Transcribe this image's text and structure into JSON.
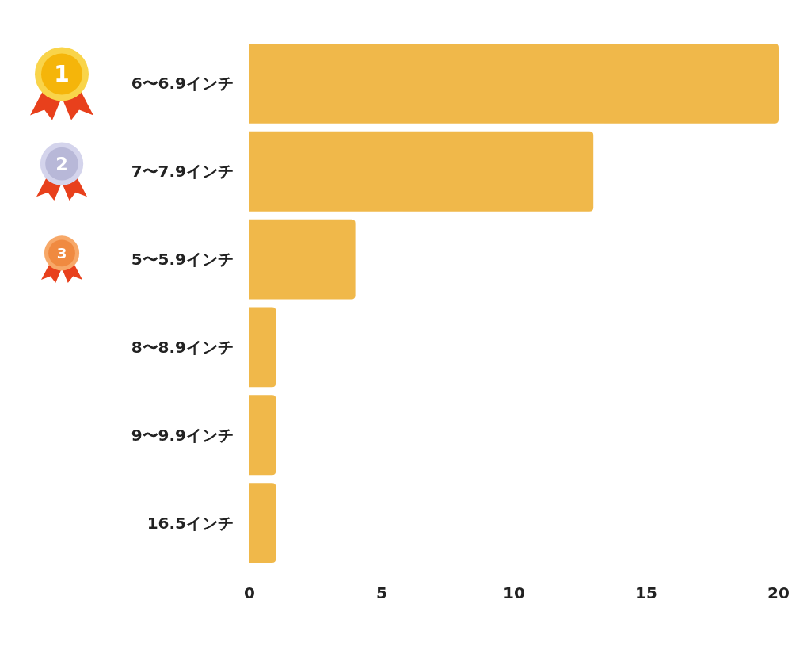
{
  "chart_data": {
    "type": "bar",
    "orientation": "horizontal",
    "categories": [
      "6〜6.9インチ",
      "7〜7.9インチ",
      "5〜5.9インチ",
      "8〜8.9インチ",
      "9〜9.9インチ",
      "16.5インチ"
    ],
    "values": [
      20,
      13,
      4,
      1,
      1,
      1
    ],
    "color": "#f0b84a",
    "xlim": [
      0,
      20
    ],
    "xticks": [
      0,
      5,
      10,
      15,
      20
    ],
    "grid": false,
    "annotations": [
      "1",
      "2",
      "3"
    ]
  }
}
